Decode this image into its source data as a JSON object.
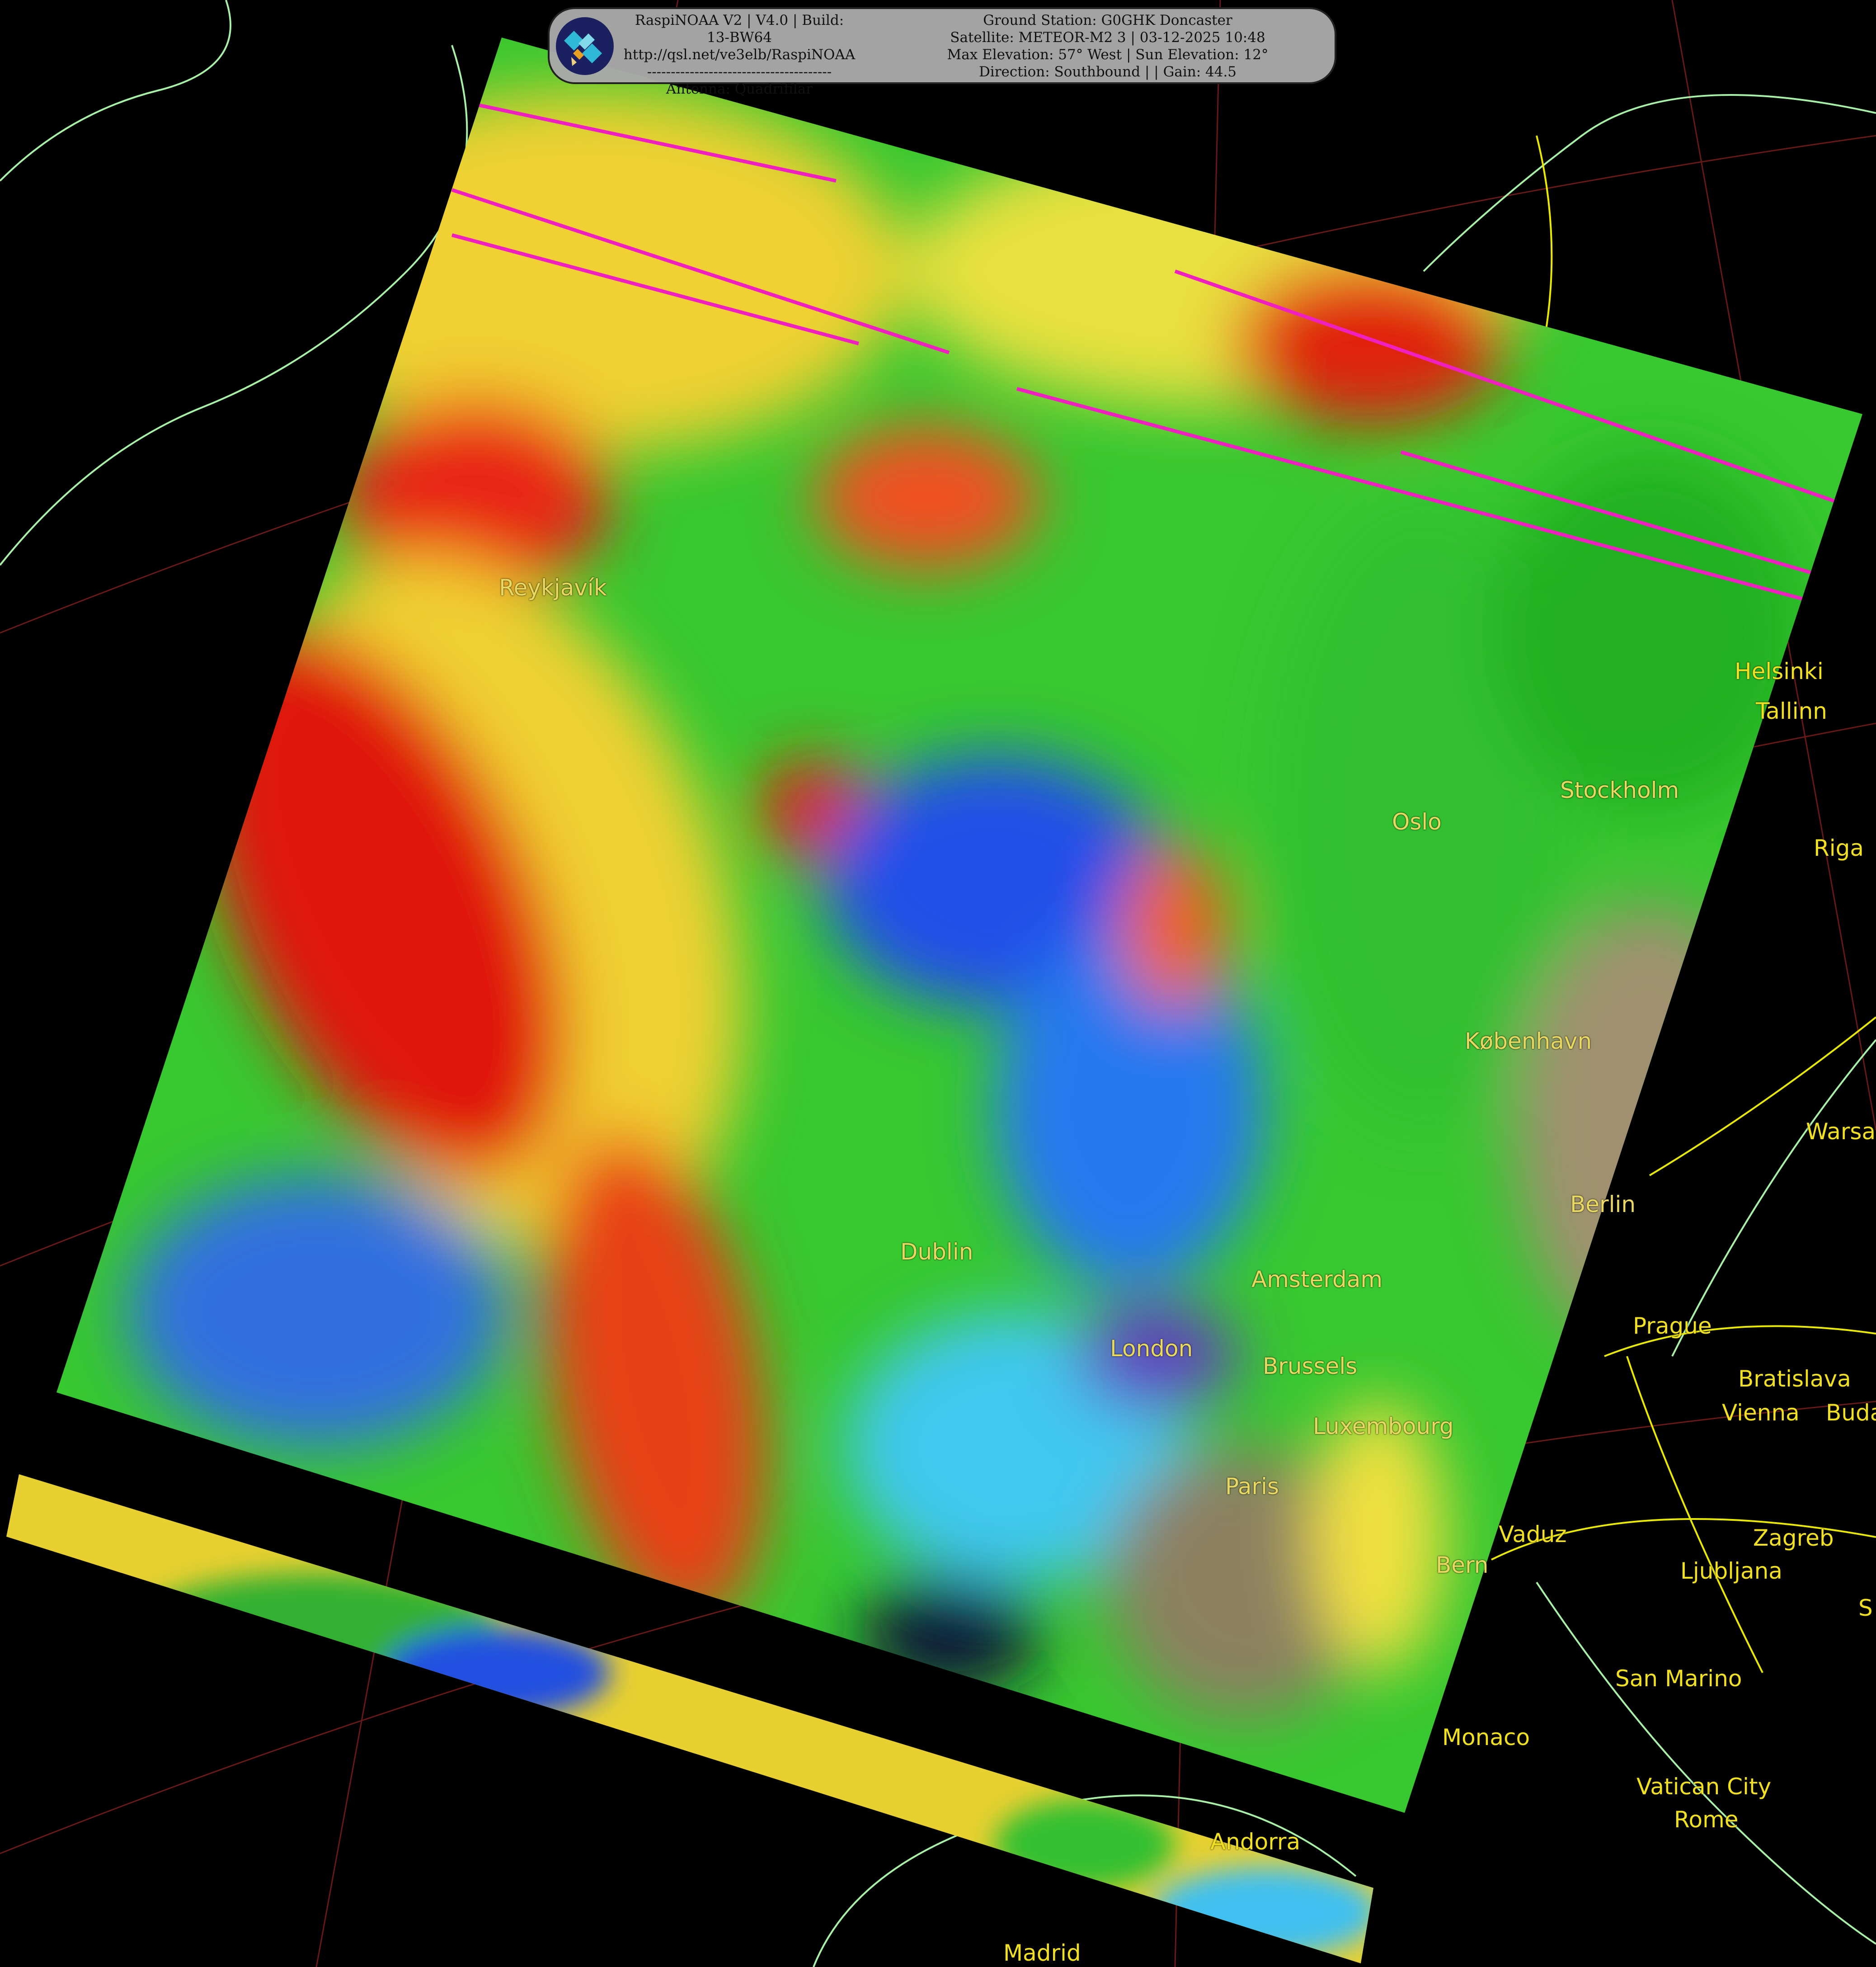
{
  "header": {
    "left_lines": [
      "RaspiNOAA V2 | V4.0 | Build: 13-BW64",
      "http://qsl.net/ve3elb/RaspiNOAA",
      "---------------------------------------",
      "Antenna: Quadrifilar"
    ],
    "right_lines": [
      "Ground Station: G0GHK Doncaster",
      "Satellite: METEOR-M2 3 | 03-12-2025 10:48",
      "Max Elevation: 57° West | Sun Elevation: 12°",
      "Direction: Southbound | | Gain: 44.5"
    ],
    "logo_icon": "satellite-icon"
  },
  "cities": [
    "Reykjavík",
    "Helsinki",
    "Tallinn",
    "Stockholm",
    "Oslo",
    "Riga",
    "København",
    "Warsa",
    "Berlin",
    "Dublin",
    "Amsterdam",
    "Prague",
    "London",
    "Brussels",
    "Bratislava",
    "Vienna",
    "Buda",
    "Luxembourg",
    "Paris",
    "Vaduz",
    "Bern",
    "Ljubljana",
    "Zagreb",
    "S",
    "San Marino",
    "Monaco",
    "Vatican City",
    "Rome",
    "Andorra",
    "Madrid"
  ],
  "colors": {
    "label": "#f0e020",
    "coastline": "#a8f0a8",
    "border": "#f0f000",
    "graticule": "#802020"
  }
}
